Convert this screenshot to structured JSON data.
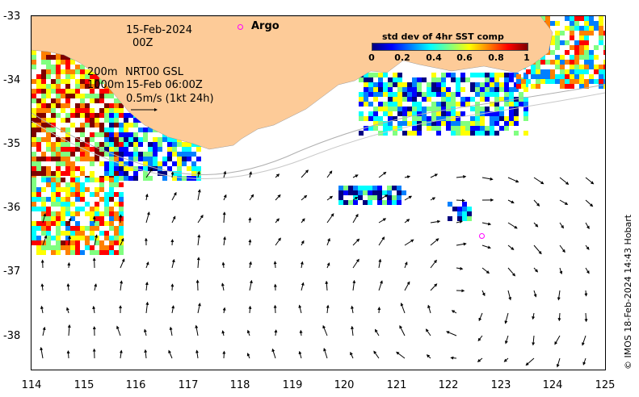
{
  "map": {
    "date_label": "15-Feb-2024",
    "time_label": "00Z",
    "depth_200_label": "200m",
    "depth_1000_label": "1000m",
    "product_label": "NRT00 GSL",
    "product_time_label": "15-Feb 06:00Z",
    "scale_label": "0.5m/s (1kt 24h)",
    "argo_label": "Argo",
    "credit": "© IMOS 18-Feb-2024 14:43 Hobart",
    "land_color": "#fdcb98",
    "argo_color": "#ff00ff",
    "lon_range": [
      114,
      125
    ],
    "lat_range": [
      -38.5,
      -33
    ]
  },
  "legend": {
    "title": "std dev of 4hr SST comp",
    "ticks": [
      "0",
      "0.2",
      "0.4",
      "0.6",
      "0.8",
      "1"
    ],
    "colormap": [
      "#00007f",
      "#0000ff",
      "#0080ff",
      "#00ffff",
      "#80ff80",
      "#ffff00",
      "#ff8000",
      "#ff0000",
      "#7f0000"
    ]
  },
  "axes": {
    "lat_ticks": [
      "-33",
      "-34",
      "-35",
      "-36",
      "-37",
      "-38"
    ],
    "lon_ticks": [
      "114",
      "115",
      "116",
      "117",
      "118",
      "119",
      "120",
      "121",
      "122",
      "123",
      "124",
      "125"
    ]
  }
}
